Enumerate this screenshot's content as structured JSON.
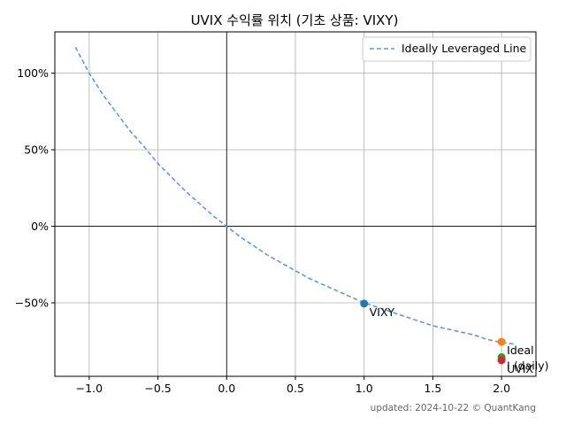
{
  "chart_data": {
    "type": "scatter",
    "title": "UVIX 수익률 위치 (기초 상품: VIXY)",
    "xlabel": "",
    "ylabel": "",
    "xlim": [
      -1.25,
      2.25
    ],
    "ylim": [
      -0.98,
      1.27
    ],
    "x_ticks": [
      -1.0,
      -0.5,
      0.0,
      0.5,
      1.0,
      1.5,
      2.0
    ],
    "x_tick_labels": [
      "−1.0",
      "−0.5",
      "0.0",
      "0.5",
      "1.0",
      "1.5",
      "2.0"
    ],
    "y_ticks": [
      -0.5,
      0.0,
      0.5,
      1.0
    ],
    "y_tick_labels": [
      "−50%",
      "0%",
      "50%",
      "100%"
    ],
    "grid": true,
    "legend_position": "top-right",
    "series": [
      {
        "name": "Ideally Leveraged Line",
        "kind": "dashed-line",
        "formula": "y = (1+x)^(-0.5) - 1 style leverage curve",
        "x": [
          -1.1,
          -1.0,
          -0.9,
          -0.8,
          -0.7,
          -0.6,
          -0.5,
          -0.4,
          -0.3,
          -0.2,
          -0.1,
          0.0,
          0.1,
          0.2,
          0.3,
          0.4,
          0.5,
          0.6,
          0.7,
          0.8,
          0.9,
          1.0,
          1.1,
          1.2,
          1.3,
          1.4,
          1.5,
          1.6,
          1.7,
          1.8,
          1.9,
          2.0,
          2.1
        ],
        "y": [
          1.17,
          1.0,
          0.86,
          0.74,
          0.62,
          0.52,
          0.41,
          0.32,
          0.23,
          0.15,
          0.07,
          0.0,
          -0.07,
          -0.13,
          -0.19,
          -0.24,
          -0.29,
          -0.34,
          -0.38,
          -0.42,
          -0.46,
          -0.5,
          -0.53,
          -0.56,
          -0.59,
          -0.62,
          -0.65,
          -0.67,
          -0.69,
          -0.71,
          -0.74,
          -0.76,
          -0.77
        ]
      }
    ],
    "points": [
      {
        "label": "VIXY",
        "x": 1.0,
        "y": -0.505,
        "color": "#1f77b4"
      },
      {
        "label": "Ideal",
        "x": 2.0,
        "y": -0.755,
        "color": "#ff7f0e"
      },
      {
        "label": "I (daily)",
        "x": 2.0,
        "y": -0.855,
        "color": "#2ca02c"
      },
      {
        "label": "UVIX",
        "x": 2.0,
        "y": -0.875,
        "color": "#d62728"
      }
    ],
    "line_color": "#6495ed",
    "footer": "updated: 2024-10-22 © QuantKang"
  }
}
